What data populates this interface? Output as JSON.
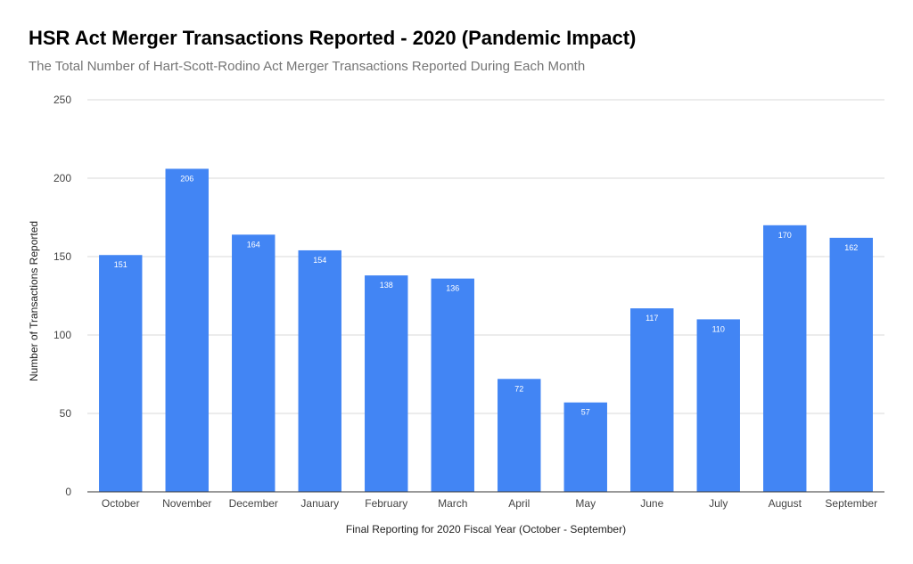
{
  "header": {
    "title": "HSR Act Merger Transactions Reported - 2020 (Pandemic Impact)",
    "subtitle": "The Total Number of Hart-Scott-Rodino Act Merger Transactions Reported During Each Month"
  },
  "chart_data": {
    "type": "bar",
    "title": "HSR Act Merger Transactions Reported - 2020 (Pandemic Impact)",
    "subtitle": "The Total Number of Hart-Scott-Rodino Act Merger Transactions Reported During Each Month",
    "xlabel": "Final Reporting for 2020 Fiscal Year (October - September)",
    "ylabel": "Number of Transactions Reported",
    "categories": [
      "October",
      "November",
      "December",
      "January",
      "February",
      "March",
      "April",
      "May",
      "June",
      "July",
      "August",
      "September"
    ],
    "values": [
      151,
      206,
      164,
      154,
      138,
      136,
      72,
      57,
      117,
      110,
      170,
      162
    ],
    "ylim": [
      0,
      250
    ],
    "yticks": [
      0,
      50,
      100,
      150,
      200,
      250
    ],
    "grid": true,
    "legend": "none",
    "bar_color": "#4285f4",
    "data_labels": true
  }
}
